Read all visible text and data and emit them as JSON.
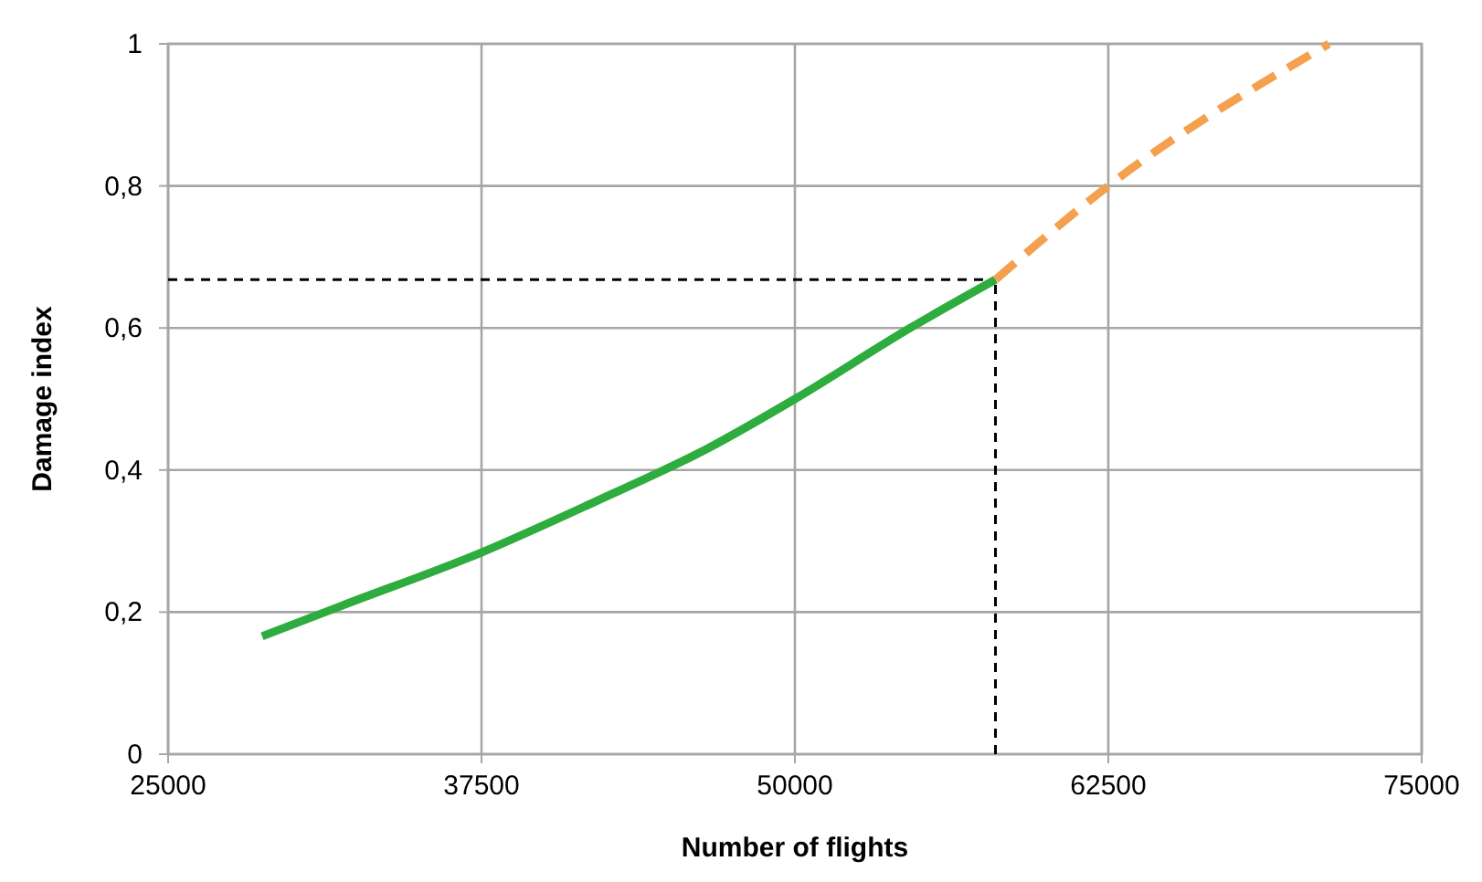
{
  "chart_data": {
    "type": "line",
    "xlabel": "Number of flights",
    "ylabel": "Damage index",
    "xlim": [
      25000,
      75000
    ],
    "xticks": [
      25000,
      37500,
      50000,
      62500,
      75000
    ],
    "ylim": [
      0,
      1
    ],
    "yticks": [
      0,
      {
        "value": 0.2,
        "label": "0,2"
      },
      {
        "value": 0.4,
        "label": "0,4"
      },
      {
        "value": 0.6,
        "label": "0,6"
      },
      {
        "value": 0.8,
        "label": "0,8"
      },
      1
    ],
    "grid": true,
    "marker": "none",
    "series": [
      {
        "color": "#2eac3e",
        "line_style": "solid",
        "x": [
          28750,
          32000,
          37500,
          42000,
          46500,
          50000,
          54600,
          58000
        ],
        "values": [
          0.166,
          0.21,
          0.284,
          0.355,
          0.43,
          0.5,
          0.6,
          0.668
        ]
      },
      {
        "color": "#f4a04e",
        "line_style": "dashed",
        "x": [
          58000,
          62500,
          71300
        ],
        "values": [
          0.668,
          0.8,
          1.0
        ]
      }
    ],
    "ref_lines": [
      {
        "axis": "y",
        "value": 0.668,
        "color": "#000000",
        "line_style": "dashed"
      },
      {
        "axis": "x",
        "value": 58000,
        "color": "#000000",
        "line_style": "dashed"
      }
    ]
  }
}
